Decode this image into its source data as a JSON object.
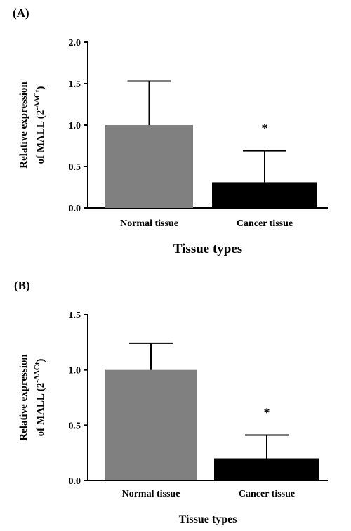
{
  "chart_data": [
    {
      "type": "bar",
      "panel_label": "(A)",
      "categories": [
        "Normal tissue",
        "Cancer tissue"
      ],
      "values": [
        1.0,
        0.31
      ],
      "error_upper": [
        1.53,
        0.69
      ],
      "colors": [
        "#808080",
        "#000000"
      ],
      "significance": [
        "",
        "*"
      ],
      "xlabel": "Tissue types",
      "ylabel_line1": "Relative expression",
      "ylabel_line2": "of MALL (2",
      "ylabel_sup": "-ΔΔCt",
      "ylabel_close": ")",
      "ylim": [
        0,
        2.0
      ],
      "yticks": [
        "0.0",
        "0.5",
        "1.0",
        "1.5",
        "2.0"
      ]
    },
    {
      "type": "bar",
      "panel_label": "(B)",
      "categories": [
        "Normal tissue",
        "Cancer tissue"
      ],
      "values": [
        1.0,
        0.2
      ],
      "error_upper": [
        1.24,
        0.41
      ],
      "colors": [
        "#808080",
        "#000000"
      ],
      "significance": [
        "",
        "*"
      ],
      "xlabel": "Tissue types",
      "ylabel_line1": "Relative expression",
      "ylabel_line2": "of MALL (2",
      "ylabel_sup": "-ΔΔCt",
      "ylabel_close": ")",
      "ylim": [
        0,
        1.5
      ],
      "yticks": [
        "0.0",
        "0.5",
        "1.0",
        "1.5"
      ]
    }
  ]
}
